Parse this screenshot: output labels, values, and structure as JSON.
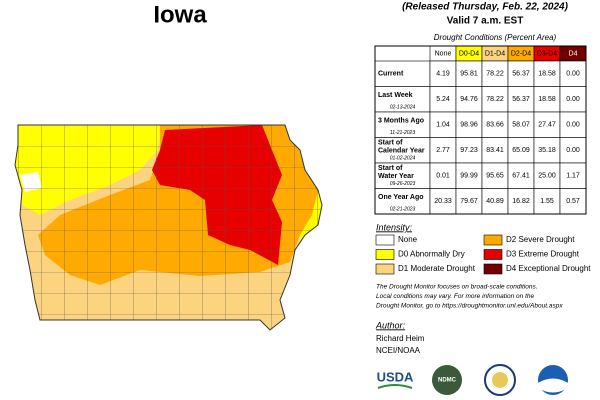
{
  "title": "Iowa",
  "released": "(Released Thursday, Feb. 22, 2024)",
  "valid": "Valid 7 a.m. EST",
  "table": {
    "caption": "Drought Conditions (Percent Area)",
    "columns": [
      "None",
      "D0-D4",
      "D1-D4",
      "D2-D4",
      "D3-D4",
      "D4"
    ],
    "column_colors": [
      "#ffffff",
      "#ffff00",
      "#fcd37f",
      "#ffaa00",
      "#e60000",
      "#730000"
    ],
    "rows": [
      {
        "label": "Current",
        "values": [
          "4.19",
          "95.81",
          "78.22",
          "56.37",
          "18.58",
          "0.00"
        ]
      },
      {
        "label": "Last Week",
        "date": "02-13-2024",
        "values": [
          "5.24",
          "94.76",
          "78.22",
          "56.37",
          "18.58",
          "0.00"
        ]
      },
      {
        "label": "3 Months Ago",
        "date": "11-21-2023",
        "values": [
          "1.04",
          "98.96",
          "83.66",
          "58.07",
          "27.47",
          "0.00"
        ]
      },
      {
        "label": "Start of Calendar Year",
        "date": "01-02-2024",
        "values": [
          "2.77",
          "97.23",
          "83.41",
          "65.09",
          "35.18",
          "0.00"
        ]
      },
      {
        "label": "Start of Water Year",
        "date": "09-26-2023",
        "values": [
          "0.01",
          "99.99",
          "95.65",
          "67.41",
          "25.00",
          "1.17"
        ]
      },
      {
        "label": "One Year Ago",
        "date": "02-21-2023",
        "values": [
          "20.33",
          "79.67",
          "40.89",
          "16.82",
          "1.55",
          "0.57"
        ]
      }
    ]
  },
  "legend": {
    "title": "Intensity:",
    "items": [
      {
        "label": "None",
        "color": "#ffffff"
      },
      {
        "label": "D0 Abnormally Dry",
        "color": "#ffff00"
      },
      {
        "label": "D1 Moderate Drought",
        "color": "#fcd37f"
      },
      {
        "label": "D2 Severe Drought",
        "color": "#ffaa00"
      },
      {
        "label": "D3 Extreme Drought",
        "color": "#e60000"
      },
      {
        "label": "D4 Exceptional Drought",
        "color": "#730000"
      }
    ]
  },
  "note": [
    "The Drought Monitor focuses on broad-scale conditions.",
    "Local conditions may vary. For more information on the",
    "Drought Monitor, go to https://droughtmonitor.unl.edu/About.aspx"
  ],
  "author": {
    "heading": "Author:",
    "name": "Richard Heim",
    "org": "NCEI/NOAA"
  },
  "logos": [
    "USDA",
    "NDMC"
  ]
}
